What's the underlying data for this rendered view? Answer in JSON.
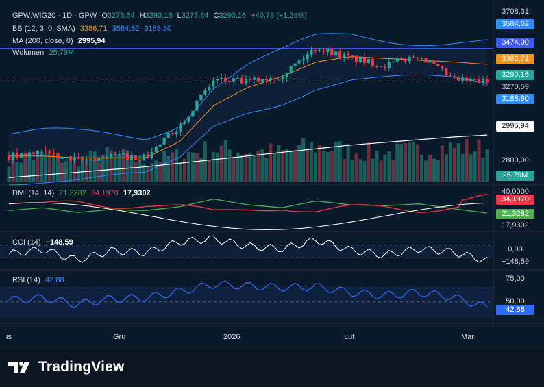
{
  "legend": {
    "symbol": "GPW:WIG20 · 1D · GPW",
    "o_label": "O",
    "o_value": "3275,64",
    "h_label": "H",
    "h_value": "3290,16",
    "l_label": "L",
    "l_value": "3275,64",
    "c_label": "C",
    "c_value": "3290,16",
    "change": "+40,78 (+1,26%)",
    "bb_label": "BB (12, 3, 0, SMA)",
    "bb_mid": "3386,71",
    "bb_upper": "3584,62",
    "bb_lower": "3188,80",
    "ma_label": "MA (200, close, 0)",
    "ma_value": "2995,94",
    "vol_label": "Wolumen",
    "vol_value": "25,79M",
    "dmi_label": "DMI (14, 14)",
    "dmi_plus": "21,3282",
    "dmi_minus": "34,1970",
    "dmi_adx": "17,9302",
    "cci_label": "CCI (14)",
    "cci_value": "−148,59",
    "rsi_label": "RSI (14)",
    "rsi_value": "42,88"
  },
  "price_scale": {
    "top": "3708,31",
    "bb_upper_tag": "3584,62",
    "hline_tag": "3474,00",
    "bb_mid_tag": "3386,71",
    "close_tag": "3290,16",
    "cross_tag": "3270,59",
    "bb_lower_tag": "3188,80",
    "ma_tag": "2995,94",
    "low_tick": "2800,00",
    "vol_tag": "25,79M"
  },
  "dmi_scale": {
    "tick": "40,0000",
    "minus_tag": "34,1970",
    "plus_tag": "21,3282",
    "adx_tag": "17,9302"
  },
  "cci_scale": {
    "tick": "0,00",
    "value_tag": "−148,59"
  },
  "rsi_scale": {
    "tick1": "75,00",
    "tick2": "50,00",
    "value_tag": "42,88"
  },
  "x_axis": [
    "is",
    "Gru",
    "2026",
    "Lut",
    "Mar"
  ],
  "brand": "TradingView",
  "colors": {
    "up": "#26a69a",
    "down": "#f23645",
    "bb_band": "#2f8cff",
    "bb_mid": "#f7931a",
    "ma": "#ffffff",
    "hline": "#3d5afe",
    "dmi_plus": "#4caf50",
    "dmi_minus": "#f23645",
    "dmi_adx": "#ffffff",
    "cci": "#ffffff",
    "rsi": "#2f6bff"
  },
  "chart_data": {
    "type": "line",
    "x": [
      "2025-11-25",
      "2025-12-01",
      "2025-12-08",
      "2025-12-15",
      "2025-12-22",
      "2026-01-05",
      "2026-01-12",
      "2026-01-19",
      "2026-01-26",
      "2026-02-02",
      "2026-02-09",
      "2026-02-16",
      "2026-02-23",
      "2026-03-02",
      "2026-03-04"
    ],
    "series": [
      {
        "name": "GPW:WIG20",
        "values": [
          2880,
          2895,
          2850,
          2880,
          2870,
          3050,
          3300,
          3290,
          3330,
          3480,
          3420,
          3380,
          3440,
          3300,
          3290.16
        ]
      },
      {
        "name": "BB (12, 3, 0, SMA)",
        "values": [
          2880,
          2880,
          2870,
          2870,
          2870,
          2960,
          3160,
          3260,
          3320,
          3400,
          3430,
          3420,
          3410,
          3400,
          3386.71
        ]
      },
      {
        "name": "MA (200, close, 0)",
        "values": [
          2760,
          2775,
          2790,
          2805,
          2820,
          2840,
          2860,
          2880,
          2900,
          2920,
          2940,
          2955,
          2970,
          2985,
          2995.94
        ]
      },
      {
        "name": "DMI (14, 14)",
        "values": [
          24,
          27,
          22,
          25,
          24,
          28,
          36,
          30,
          27,
          34,
          30,
          29,
          31,
          26,
          21.3282
        ]
      },
      {
        "name": "CCI (14)",
        "values": [
          -40,
          30,
          -140,
          10,
          -20,
          150,
          200,
          80,
          40,
          180,
          20,
          -60,
          40,
          -10,
          -148.59
        ]
      },
      {
        "name": "RSI (14)",
        "values": [
          52,
          55,
          47,
          54,
          55,
          63,
          72,
          70,
          68,
          69,
          62,
          58,
          62,
          56,
          42.88
        ]
      }
    ],
    "volume": [
      18,
      20,
      17,
      22,
      16,
      21,
      26,
      24,
      23,
      28,
      24,
      22,
      25,
      27,
      25.79
    ],
    "hline": 3474.0,
    "last_close": 3290.16,
    "ylim_price": [
      2750,
      3720
    ]
  }
}
